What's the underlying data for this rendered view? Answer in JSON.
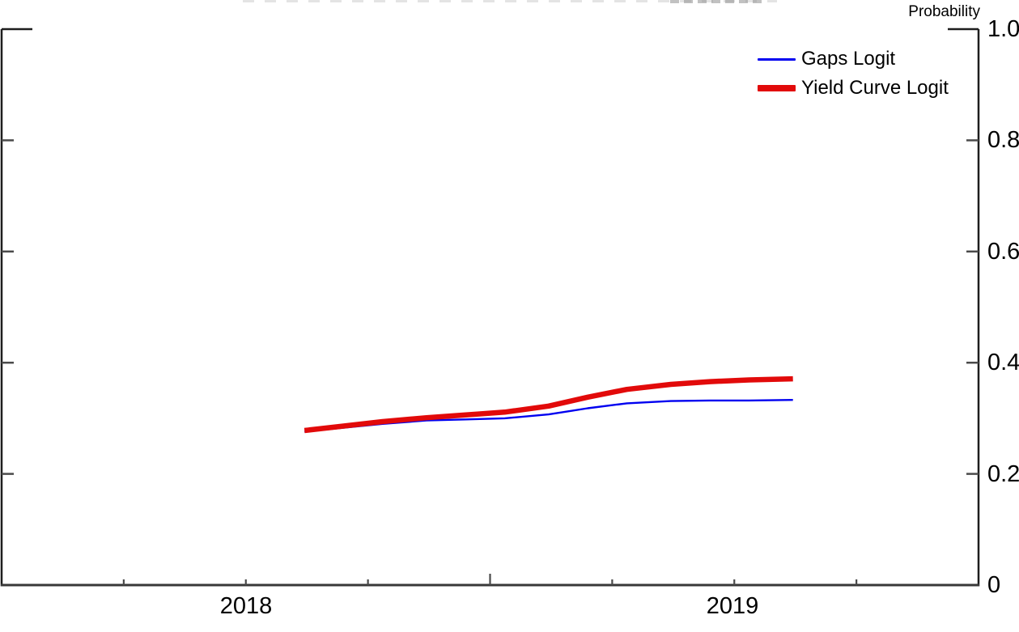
{
  "chart_data": {
    "type": "line",
    "title": "",
    "xlabel": "",
    "ylabel": "Probability",
    "ylim": [
      0,
      1
    ],
    "xlim": [
      2018.0,
      2020.0
    ],
    "grid": false,
    "legend_position": "top-right",
    "x_unit": "decimal year (monthly points)",
    "x": [
      2018.62,
      2018.7,
      2018.78,
      2018.87,
      2018.95,
      2019.03,
      2019.12,
      2019.2,
      2019.28,
      2019.37,
      2019.45,
      2019.53,
      2019.62
    ],
    "series": [
      {
        "name": "Gaps Logit",
        "color": "#0000f0",
        "line_width": 2.4,
        "values": [
          0.276,
          0.283,
          0.29,
          0.296,
          0.298,
          0.3,
          0.307,
          0.318,
          0.327,
          0.331,
          0.332,
          0.332,
          0.333
        ]
      },
      {
        "name": "Yield Curve Logit",
        "color": "#e20a0a",
        "line_width": 6.5,
        "values": [
          0.278,
          0.286,
          0.294,
          0.301,
          0.306,
          0.311,
          0.322,
          0.338,
          0.352,
          0.361,
          0.366,
          0.369,
          0.371
        ]
      }
    ],
    "y_ticks": [
      {
        "value": 0.0,
        "label": "0"
      },
      {
        "value": 0.2,
        "label": "0.2"
      },
      {
        "value": 0.4,
        "label": "0.4"
      },
      {
        "value": 0.6,
        "label": "0.6"
      },
      {
        "value": 0.8,
        "label": "0.8"
      },
      {
        "value": 1.0,
        "label": "1.0"
      }
    ],
    "x_minor_ticks": [
      2018.25,
      2018.5,
      2018.75,
      2019.25,
      2019.5,
      2019.75
    ],
    "x_major_ticks": [
      2019.0
    ],
    "x_tick_year_labels": [
      {
        "x": 2018.5,
        "label": "2018"
      },
      {
        "x": 2019.5,
        "label": "2019"
      }
    ]
  }
}
